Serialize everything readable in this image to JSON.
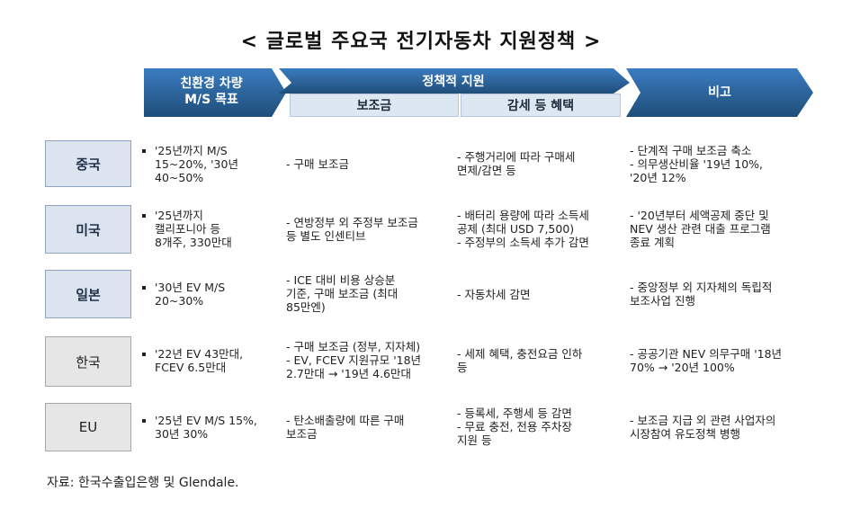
{
  "title": "< 글로벌 주요국 전기자동차 지원정책 >",
  "headers": {
    "goal": [
      "친환경 차량",
      "M/S 목표"
    ],
    "policy": "정책적 지원",
    "subsidy": "보조금",
    "tax": "감세 등 혜택",
    "remark": "비고"
  },
  "colors": {
    "header_dark": "#1f4e79",
    "header_mid": "#2e6da4",
    "subheader_bg": "#dde7f2"
  },
  "rows": [
    {
      "country": "중국",
      "goal": [
        "'25년까지 M/S",
        "15~20%, '30년",
        "40~50%"
      ],
      "subsidy": [
        "- 구매 보조금"
      ],
      "tax": [
        "- 주행거리에 따라 구매세",
        "  면제/감면 등"
      ],
      "remark": [
        "- 단계적 구매 보조금 축소",
        "- 의무생산비율 '19년 10%,",
        "  '20년 12%"
      ]
    },
    {
      "country": "미국",
      "goal": [
        "'25년까지",
        "캘리포니아 등",
        "8개주, 330만대"
      ],
      "subsidy": [
        "- 연방정부 외 주정부 보조금",
        "  등 별도 인센티브"
      ],
      "tax": [
        "- 배터리 용량에 따라 소득세",
        "  공제 (최대 USD 7,500)",
        "- 주정부의 소득세 추가 감면"
      ],
      "remark": [
        "- '20년부터 세액공제 중단 및",
        "  NEV 생산 관련 대출 프로그램",
        "  종료 계획"
      ]
    },
    {
      "country": "일본",
      "goal": [
        "'30년 EV M/S",
        "20~30%"
      ],
      "subsidy": [
        "- ICE 대비 비용 상승분",
        "  기준, 구매 보조금 (최대",
        "  85만엔)"
      ],
      "tax": [
        "- 자동차세 감면"
      ],
      "remark": [
        "- 중앙정부 외 지자체의 독립적",
        "  보조사업 진행"
      ]
    },
    {
      "country": "한국",
      "goal": [
        "'22년 EV 43만대,",
        "FCEV 6.5만대"
      ],
      "subsidy": [
        "- 구매 보조금 (정부, 지자체)",
        "- EV, FCEV 지원규모 '18년",
        "  2.7만대 → '19년 4.6만대"
      ],
      "tax": [
        "- 세제 혜택, 충전요금 인하",
        "  등"
      ],
      "remark": [
        "- 공공기관 NEV 의무구매 '18년",
        "  70% → '20년 100%"
      ]
    },
    {
      "country": "EU",
      "goal": [
        "'25년 EV M/S 15%,",
        "30년 30%"
      ],
      "subsidy": [
        "- 탄소배출량에 따른 구매",
        "  보조금"
      ],
      "tax": [
        "- 등록세, 주행세 등 감면",
        "- 무료 충전, 전용 주차장",
        "  지원 등"
      ],
      "remark": [
        "- 보조금 지급 외 관련 사업자의",
        "  시장참여 유도정책 병행"
      ]
    }
  ],
  "source": "자료: 한국수출입은행 및 Glendale."
}
